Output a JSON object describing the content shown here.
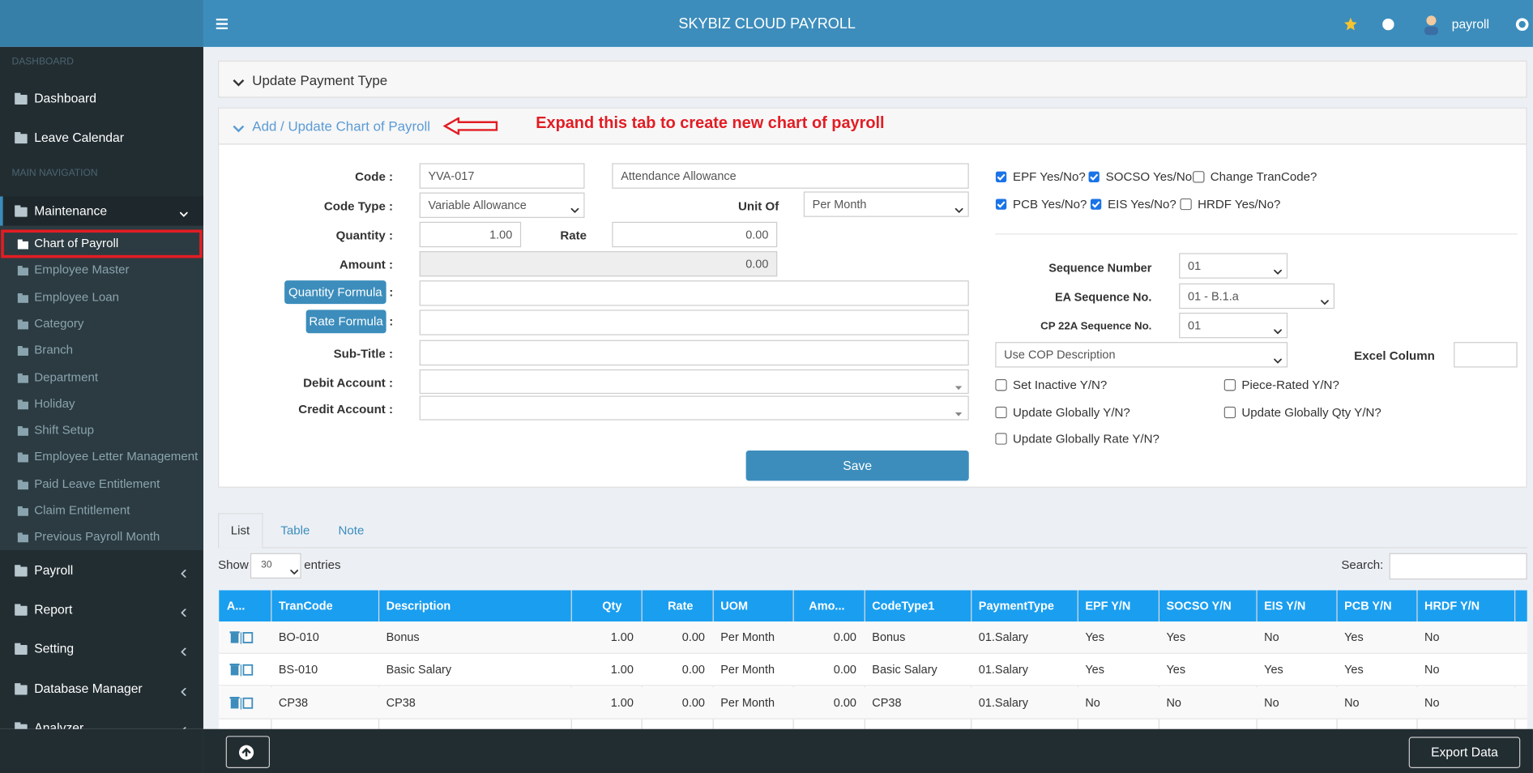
{
  "header": {
    "title": "SKYBIZ CLOUD PAYROLL",
    "user": "payroll"
  },
  "sidebar": {
    "dashboard_label": "DASHBOARD",
    "top_items": [
      "Dashboard",
      "Leave Calendar"
    ],
    "nav_label": "MAIN NAVIGATION",
    "maintenance": "Maintenance",
    "sub_items": [
      "Chart of Payroll",
      "Employee Master",
      "Employee Loan",
      "Category",
      "Branch",
      "Department",
      "Holiday",
      "Shift Setup",
      "Employee Letter Management",
      "Paid Leave Entitlement",
      "Claim Entitlement",
      "Previous Payroll Month"
    ],
    "items": [
      "Payroll",
      "Report",
      "Setting",
      "Database Manager",
      "Analyzer"
    ]
  },
  "panels": {
    "update_payment_type": "Update Payment Type",
    "add_update": "Add / Update Chart of Payroll",
    "annotation": "Expand this tab to create new chart of payroll"
  },
  "form": {
    "code_label": "Code :",
    "code": "YVA-017",
    "description": "Attendance Allowance",
    "code_type_label": "Code Type :",
    "code_type": "Variable Allowance",
    "unit_of_label": "Unit Of",
    "unit_of": "Per Month",
    "quantity_label": "Quantity :",
    "quantity": "1.00",
    "rate_label": "Rate",
    "rate": "0.00",
    "amount_label": "Amount :",
    "amount": "0.00",
    "quantity_formula": "Quantity Formula",
    "rate_formula": "Rate Formula",
    "colon": ":",
    "subtitle_label": "Sub-Title :",
    "debit_label": "Debit Account :",
    "credit_label": "Credit Account :",
    "checks_top": [
      {
        "label": "EPF Yes/No?",
        "checked": true
      },
      {
        "label": "SOCSO Yes/No",
        "checked": true
      },
      {
        "label": "Change TranCode?",
        "checked": false
      },
      {
        "label": "PCB Yes/No?",
        "checked": true
      },
      {
        "label": "EIS Yes/No?",
        "checked": true
      },
      {
        "label": "HRDF Yes/No?",
        "checked": false
      }
    ],
    "sequence_label": "Sequence Number",
    "sequence": "01",
    "ea_label": "EA Sequence No.",
    "ea": "01 - B.1.a",
    "cp22a_label": "CP 22A Sequence No.",
    "cp22a": "01",
    "cop": "Use COP Description",
    "excel_label": "Excel Column",
    "checks_bottom": [
      {
        "label": "Set Inactive Y/N?",
        "checked": false
      },
      {
        "label": "Piece-Rated Y/N?",
        "checked": false
      },
      {
        "label": "Update Globally Y/N?",
        "checked": false
      },
      {
        "label": "Update Globally Qty Y/N?",
        "checked": false
      },
      {
        "label": "Update Globally Rate Y/N?",
        "checked": false
      }
    ],
    "save": "Save"
  },
  "tabs": [
    "List",
    "Table",
    "Note"
  ],
  "table": {
    "show": "Show",
    "entries_value": "30",
    "entries": "entries",
    "search": "Search:",
    "columns": [
      "A...",
      "TranCode",
      "Description",
      "Qty",
      "Rate",
      "UOM",
      "Amo...",
      "CodeType1",
      "PaymentType",
      "EPF Y/N",
      "SOCSO Y/N",
      "EIS Y/N",
      "PCB Y/N",
      "HRDF Y/N"
    ],
    "rows": [
      [
        "",
        "BO-010",
        "Bonus",
        "1.00",
        "0.00",
        "Per Month",
        "0.00",
        "Bonus",
        "01.Salary",
        "Yes",
        "Yes",
        "No",
        "Yes",
        "No"
      ],
      [
        "",
        "BS-010",
        "Basic Salary",
        "1.00",
        "0.00",
        "Per Month",
        "0.00",
        "Basic Salary",
        "01.Salary",
        "Yes",
        "Yes",
        "Yes",
        "Yes",
        "No"
      ],
      [
        "",
        "CP38",
        "CP38",
        "1.00",
        "0.00",
        "Per Month",
        "0.00",
        "CP38",
        "01.Salary",
        "No",
        "No",
        "No",
        "No",
        "No"
      ]
    ]
  },
  "footer": {
    "export": "Export Data"
  }
}
